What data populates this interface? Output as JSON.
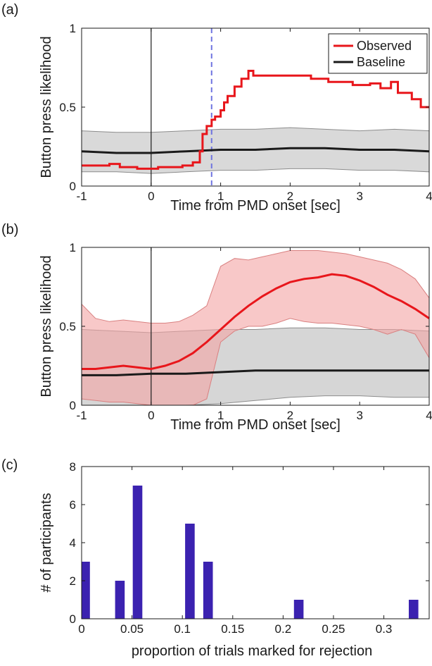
{
  "chart_data": [
    {
      "panel": "(a)",
      "type": "line",
      "xlabel": "Time from PMD onset [sec]",
      "ylabel": "Button press likelihood",
      "xlim": [
        -1,
        4
      ],
      "ylim": [
        0,
        1
      ],
      "xticks": [
        "-1",
        "0",
        "1",
        "2",
        "3",
        "4"
      ],
      "yticks": [
        "0",
        "0.5",
        "1"
      ],
      "xtick_values": [
        -1,
        0,
        1,
        2,
        3,
        4
      ],
      "ytick_values": [
        0,
        0.5,
        1
      ],
      "grid": false,
      "legend": {
        "placement": "top-right",
        "entries": [
          "Observed",
          "Baseline"
        ]
      },
      "colors": {
        "observed": "#e8161b",
        "baseline": "#1a1a1a",
        "band": "#d9d9d9",
        "band_edge": "#8c8c8c",
        "vline": "#1a1a1a",
        "dashed": "#6f74e0"
      },
      "vertical_lines": [
        0
      ],
      "dashed_line": 0.87,
      "series": [
        {
          "name": "Observed",
          "x": [
            -1,
            -0.6,
            -0.6,
            -0.45,
            -0.45,
            -0.2,
            -0.2,
            0.1,
            0.1,
            0.45,
            0.45,
            0.6,
            0.6,
            0.7,
            0.7,
            0.74,
            0.74,
            0.8,
            0.8,
            0.87,
            0.87,
            0.92,
            0.92,
            1.0,
            1.0,
            1.05,
            1.05,
            1.1,
            1.1,
            1.2,
            1.2,
            1.3,
            1.3,
            1.4,
            1.4,
            1.47,
            1.47,
            2.3,
            2.3,
            2.55,
            2.55,
            2.9,
            2.9,
            3.15,
            3.15,
            3.3,
            3.3,
            3.45,
            3.45,
            3.55,
            3.55,
            3.75,
            3.75,
            3.88,
            3.88,
            4
          ],
          "y": [
            0.13,
            0.13,
            0.14,
            0.14,
            0.12,
            0.12,
            0.11,
            0.11,
            0.12,
            0.12,
            0.13,
            0.13,
            0.15,
            0.15,
            0.22,
            0.22,
            0.33,
            0.33,
            0.38,
            0.38,
            0.42,
            0.42,
            0.44,
            0.44,
            0.48,
            0.48,
            0.53,
            0.53,
            0.57,
            0.57,
            0.63,
            0.63,
            0.68,
            0.68,
            0.73,
            0.73,
            0.7,
            0.7,
            0.68,
            0.68,
            0.66,
            0.66,
            0.64,
            0.64,
            0.65,
            0.65,
            0.62,
            0.62,
            0.66,
            0.66,
            0.59,
            0.59,
            0.55,
            0.55,
            0.5,
            0.5
          ]
        },
        {
          "name": "Baseline",
          "x": [
            -1,
            -0.5,
            0,
            0.5,
            1,
            1.5,
            2,
            2.5,
            3,
            3.5,
            4
          ],
          "y": [
            0.22,
            0.21,
            0.21,
            0.22,
            0.23,
            0.23,
            0.24,
            0.24,
            0.23,
            0.23,
            0.22
          ],
          "band_upper": [
            0.35,
            0.34,
            0.34,
            0.35,
            0.36,
            0.36,
            0.37,
            0.36,
            0.35,
            0.36,
            0.35
          ],
          "band_lower": [
            0.09,
            0.09,
            0.08,
            0.09,
            0.1,
            0.1,
            0.11,
            0.11,
            0.1,
            0.1,
            0.09
          ]
        }
      ]
    },
    {
      "panel": "(b)",
      "type": "line",
      "xlabel": "Time from PMD onset [sec]",
      "ylabel": "Button press likelihood",
      "xlim": [
        -1,
        4
      ],
      "ylim": [
        0,
        1
      ],
      "xticks": [
        "-1",
        "0",
        "1",
        "2",
        "3",
        "4"
      ],
      "yticks": [
        "0",
        "0.5",
        "1"
      ],
      "xtick_values": [
        -1,
        0,
        1,
        2,
        3,
        4
      ],
      "ytick_values": [
        0,
        0.5,
        1
      ],
      "grid": false,
      "colors": {
        "observed": "#e8161b",
        "observed_band": "#f3a3a3",
        "observed_band_edge": "#d98080",
        "baseline": "#1a1a1a",
        "band": "#cfcfcf",
        "band_edge": "#8c8c8c",
        "vline": "#1a1a1a"
      },
      "vertical_lines": [
        0
      ],
      "series": [
        {
          "name": "Observed",
          "x": [
            -1,
            -0.8,
            -0.6,
            -0.4,
            -0.2,
            0,
            0.2,
            0.4,
            0.6,
            0.8,
            1.0,
            1.2,
            1.4,
            1.6,
            1.8,
            2.0,
            2.2,
            2.4,
            2.6,
            2.8,
            3.0,
            3.2,
            3.4,
            3.6,
            3.8,
            4.0
          ],
          "y": [
            0.23,
            0.23,
            0.24,
            0.25,
            0.24,
            0.23,
            0.25,
            0.28,
            0.33,
            0.4,
            0.48,
            0.56,
            0.63,
            0.69,
            0.74,
            0.78,
            0.8,
            0.81,
            0.83,
            0.82,
            0.79,
            0.75,
            0.7,
            0.66,
            0.61,
            0.55
          ],
          "band_upper": [
            0.64,
            0.55,
            0.53,
            0.54,
            0.53,
            0.52,
            0.52,
            0.53,
            0.57,
            0.63,
            0.88,
            0.93,
            0.92,
            0.94,
            0.96,
            0.98,
            0.98,
            0.98,
            0.97,
            0.96,
            0.94,
            0.92,
            0.9,
            0.86,
            0.8,
            0.68
          ],
          "band_lower": [
            0.04,
            0.03,
            0.02,
            0.02,
            0.01,
            0.0,
            0.0,
            0.0,
            0.0,
            0.04,
            0.4,
            0.47,
            0.5,
            0.5,
            0.52,
            0.55,
            0.53,
            0.52,
            0.52,
            0.51,
            0.5,
            0.48,
            0.45,
            0.48,
            0.45,
            0.3
          ]
        },
        {
          "name": "Baseline",
          "x": [
            -1,
            -0.5,
            0,
            0.5,
            1,
            1.5,
            2,
            2.5,
            3,
            3.5,
            4
          ],
          "y": [
            0.19,
            0.19,
            0.2,
            0.2,
            0.21,
            0.22,
            0.22,
            0.22,
            0.22,
            0.22,
            0.22
          ],
          "band_upper": [
            0.48,
            0.47,
            0.46,
            0.47,
            0.48,
            0.48,
            0.49,
            0.49,
            0.48,
            0.48,
            0.47
          ],
          "band_lower": [
            0.0,
            0.0,
            0.0,
            0.0,
            0.01,
            0.03,
            0.05,
            0.06,
            0.06,
            0.05,
            0.05
          ]
        }
      ]
    },
    {
      "panel": "(c)",
      "type": "bar",
      "xlabel": "proportion of trials marked for rejection",
      "ylabel": "# of participants",
      "xlim": [
        0,
        0.345
      ],
      "ylim": [
        0,
        8
      ],
      "xticks": [
        "0",
        "0.05",
        "0.1",
        "0.15",
        "0.2",
        "0.25",
        "0.3"
      ],
      "yticks": [
        "0",
        "2",
        "4",
        "6",
        "8"
      ],
      "xtick_values": [
        0,
        0.05,
        0.1,
        0.15,
        0.2,
        0.25,
        0.3
      ],
      "ytick_values": [
        0,
        2,
        4,
        6,
        8
      ],
      "grid": false,
      "bar_width": 0.0095,
      "colors": {
        "bar": "#3b22b0"
      },
      "x": [
        0.0035,
        0.038,
        0.0555,
        0.1075,
        0.1255,
        0.2155,
        0.3295
      ],
      "values": [
        3,
        2,
        7,
        5,
        3,
        1,
        1
      ]
    }
  ],
  "panels": [
    {
      "label": "(a)",
      "legend_observed": "Observed",
      "legend_baseline": "Baseline"
    },
    {
      "label": "(b)"
    },
    {
      "label": "(c)"
    }
  ]
}
